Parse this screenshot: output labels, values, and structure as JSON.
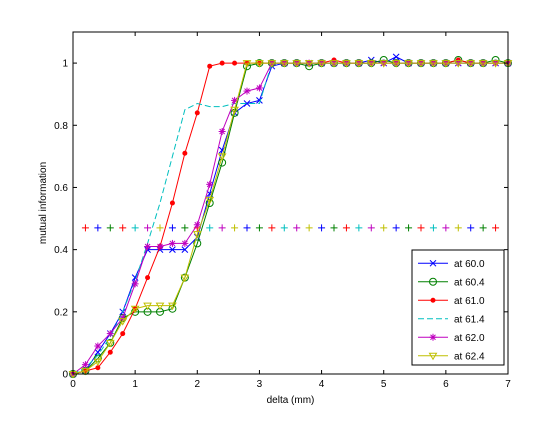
{
  "chart_data": {
    "type": "line",
    "xlabel": "delta (mm)",
    "ylabel": "mutual information",
    "xlim": [
      0,
      7
    ],
    "ylim": [
      0,
      1.1
    ],
    "xticks": [
      0,
      1,
      2,
      3,
      4,
      5,
      6,
      7
    ],
    "yticks": [
      0,
      0.2,
      0.4,
      0.6,
      0.8,
      1
    ],
    "legend_position": "bottom-right",
    "series": [
      {
        "name": "at 60.0",
        "color": "#0000ff",
        "marker": "x",
        "style": "solid",
        "x": [
          0,
          0.2,
          0.4,
          0.6,
          0.8,
          1.0,
          1.2,
          1.4,
          1.6,
          1.8,
          2.0,
          2.2,
          2.4,
          2.6,
          2.8,
          3.0,
          3.2,
          3.4,
          3.6,
          3.8,
          4.0,
          4.2,
          4.4,
          4.6,
          4.8,
          5.0,
          5.2,
          5.4,
          5.6,
          5.8,
          6.0,
          6.2,
          6.4,
          6.6,
          6.8,
          7.0
        ],
        "y": [
          0,
          0.01,
          0.07,
          0.13,
          0.2,
          0.31,
          0.4,
          0.4,
          0.4,
          0.4,
          0.44,
          0.58,
          0.72,
          0.84,
          0.87,
          0.88,
          0.99,
          1.0,
          1.0,
          1.0,
          1.0,
          1.0,
          1.0,
          1.0,
          1.01,
          1.0,
          1.02,
          1.0,
          1.0,
          1.0,
          1.0,
          1.0,
          1.0,
          1.0,
          1.0,
          1.0
        ]
      },
      {
        "name": "at 60.4",
        "color": "#008000",
        "marker": "o",
        "style": "solid",
        "x": [
          0,
          0.2,
          0.4,
          0.6,
          0.8,
          1.0,
          1.2,
          1.4,
          1.6,
          1.8,
          2.0,
          2.2,
          2.4,
          2.6,
          2.8,
          3.0,
          3.2,
          3.4,
          3.6,
          3.8,
          4.0,
          4.2,
          4.4,
          4.6,
          4.8,
          5.0,
          5.2,
          5.4,
          5.6,
          5.8,
          6.0,
          6.2,
          6.4,
          6.6,
          6.8,
          7.0
        ],
        "y": [
          0,
          0.01,
          0.05,
          0.1,
          0.18,
          0.2,
          0.2,
          0.2,
          0.21,
          0.31,
          0.42,
          0.55,
          0.68,
          0.84,
          0.99,
          1.0,
          1.0,
          1.0,
          1.0,
          0.99,
          1.0,
          1.0,
          1.0,
          1.0,
          1.0,
          1.01,
          1.0,
          1.0,
          1.0,
          1.0,
          1.0,
          1.01,
          1.0,
          1.0,
          1.01,
          1.0
        ]
      },
      {
        "name": "at 61.0",
        "color": "#ff0000",
        "marker": "dot",
        "style": "solid",
        "x": [
          0,
          0.2,
          0.4,
          0.6,
          0.8,
          1.0,
          1.2,
          1.4,
          1.6,
          1.8,
          2.0,
          2.2,
          2.4,
          2.6,
          2.8,
          3.0,
          3.2,
          3.4,
          3.6,
          3.8,
          4.0,
          4.2,
          4.4,
          4.6,
          4.8,
          5.0,
          5.2,
          5.4,
          5.6,
          5.8,
          6.0,
          6.2,
          6.4,
          6.6,
          6.8,
          7.0
        ],
        "y": [
          0,
          0.01,
          0.02,
          0.07,
          0.13,
          0.21,
          0.31,
          0.41,
          0.55,
          0.71,
          0.84,
          0.99,
          1.0,
          1.0,
          1.0,
          1.0,
          1.0,
          1.0,
          1.0,
          1.0,
          1.0,
          1.01,
          1.0,
          1.0,
          1.0,
          1.0,
          1.0,
          1.0,
          1.0,
          1.0,
          1.0,
          1.01,
          1.0,
          1.0,
          1.0,
          1.0
        ]
      },
      {
        "name": "at 61.4",
        "color": "#00bfbf",
        "marker": "none",
        "style": "dashed",
        "x": [
          0,
          0.2,
          0.4,
          0.6,
          0.8,
          1.0,
          1.2,
          1.4,
          1.6,
          1.8,
          2.0,
          2.2,
          2.4,
          2.6,
          2.8,
          3.0,
          3.2,
          3.4,
          3.6,
          3.8,
          4.0,
          4.2,
          4.4,
          4.6,
          4.8,
          5.0,
          5.2,
          5.4,
          5.6,
          5.8,
          6.0,
          6.2,
          6.4,
          6.6,
          6.8,
          7.0
        ],
        "y": [
          0,
          0.02,
          0.06,
          0.12,
          0.2,
          0.3,
          0.42,
          0.55,
          0.7,
          0.85,
          0.87,
          0.86,
          0.86,
          0.87,
          0.87,
          0.87,
          1.0,
          1.0,
          1.0,
          1.0,
          1.0,
          1.0,
          1.0,
          1.0,
          1.0,
          1.0,
          1.0,
          1.0,
          1.0,
          1.0,
          1.0,
          1.0,
          1.0,
          1.0,
          1.0,
          1.0
        ]
      },
      {
        "name": "at 62.0",
        "color": "#bf00bf",
        "marker": "*",
        "style": "solid",
        "x": [
          0,
          0.2,
          0.4,
          0.6,
          0.8,
          1.0,
          1.2,
          1.4,
          1.6,
          1.8,
          2.0,
          2.2,
          2.4,
          2.6,
          2.8,
          3.0,
          3.2,
          3.4,
          3.6,
          3.8,
          4.0,
          4.2,
          4.4,
          4.6,
          4.8,
          5.0,
          5.2,
          5.4,
          5.6,
          5.8,
          6.0,
          6.2,
          6.4,
          6.6,
          6.8,
          7.0
        ],
        "y": [
          0,
          0.03,
          0.09,
          0.13,
          0.18,
          0.29,
          0.41,
          0.41,
          0.42,
          0.42,
          0.48,
          0.61,
          0.78,
          0.88,
          0.91,
          0.92,
          1.0,
          1.0,
          1.0,
          1.0,
          1.0,
          1.0,
          1.0,
          1.0,
          1.0,
          1.0,
          1.0,
          1.0,
          1.0,
          1.0,
          1.0,
          1.0,
          1.0,
          1.0,
          1.0,
          1.0
        ]
      },
      {
        "name": "at 62.4",
        "color": "#bfbf00",
        "marker": "v",
        "style": "solid",
        "x": [
          0,
          0.2,
          0.4,
          0.6,
          0.8,
          1.0,
          1.2,
          1.4,
          1.6,
          1.8,
          2.0,
          2.2,
          2.4,
          2.6,
          2.8,
          3.0,
          3.2,
          3.4,
          3.6,
          3.8,
          4.0,
          4.2,
          4.4,
          4.6,
          4.8,
          5.0,
          5.2,
          5.4,
          5.6,
          5.8,
          6.0,
          6.2,
          6.4,
          6.6,
          6.8,
          7.0
        ],
        "y": [
          0,
          0.01,
          0.04,
          0.1,
          0.17,
          0.21,
          0.22,
          0.22,
          0.22,
          0.31,
          0.45,
          0.56,
          0.7,
          0.85,
          1.0,
          1.0,
          1.0,
          1.0,
          1.0,
          1.0,
          1.0,
          1.0,
          1.0,
          1.0,
          1.0,
          1.0,
          1.0,
          1.0,
          1.0,
          1.0,
          1.0,
          1.0,
          1.0,
          1.0,
          1.0,
          1.0
        ]
      }
    ],
    "reference_line": {
      "y": 0.47,
      "marker": "+",
      "x": [
        0.2,
        0.4,
        0.6,
        0.8,
        1.0,
        1.2,
        1.4,
        1.6,
        1.8,
        2.0,
        2.2,
        2.4,
        2.6,
        2.8,
        3.0,
        3.2,
        3.4,
        3.6,
        3.8,
        4.0,
        4.2,
        4.4,
        4.6,
        4.8,
        5.0,
        5.2,
        5.4,
        5.6,
        5.8,
        6.0,
        6.2,
        6.4,
        6.6,
        6.8
      ],
      "colors": [
        "#ff0000",
        "#0000ff",
        "#008000",
        "#ff0000",
        "#00bfbf",
        "#bf00bf",
        "#bfbf00",
        "#0000ff",
        "#008000",
        "#ff0000",
        "#00bfbf",
        "#bf00bf",
        "#bfbf00",
        "#0000ff",
        "#008000",
        "#ff0000",
        "#00bfbf",
        "#bf00bf",
        "#bfbf00",
        "#0000ff",
        "#008000",
        "#ff0000",
        "#00bfbf",
        "#bf00bf",
        "#bfbf00",
        "#0000ff",
        "#008000",
        "#ff0000",
        "#00bfbf",
        "#bf00bf",
        "#bfbf00",
        "#0000ff",
        "#008000",
        "#ff0000"
      ]
    }
  }
}
